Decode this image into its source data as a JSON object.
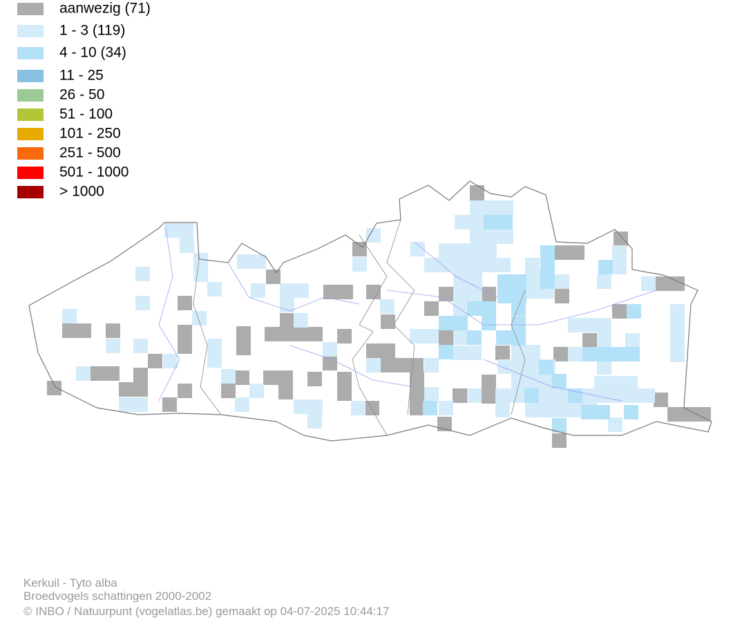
{
  "legend": {
    "items": [
      {
        "label": "aanwezig (71)",
        "color": "#acacac"
      },
      {
        "label": "1 - 3 (119)",
        "color": "#d4ebf9"
      },
      {
        "label": "4 - 10 (34)",
        "color": "#b3e1f7"
      },
      {
        "label": "11 - 25",
        "color": "#88c0e2"
      },
      {
        "label": "26 - 50",
        "color": "#9acb94"
      },
      {
        "label": "51 - 100",
        "color": "#b3c536"
      },
      {
        "label": "101 - 250",
        "color": "#e5ab00"
      },
      {
        "label": "251 - 500",
        "color": "#f86a0b"
      },
      {
        "label": "501 - 1000",
        "color": "#fe0000"
      },
      {
        "label": "> 1000",
        "color": "#a60000"
      }
    ]
  },
  "footer": {
    "lines": [
      "Kerkuil - Tyto alba",
      "Broedvogels schattingen 2000-2002",
      "© INBO / Natuurpunt (vogelatlas.be) gemaakt op 04-07-2025 10:44:17"
    ]
  }
}
